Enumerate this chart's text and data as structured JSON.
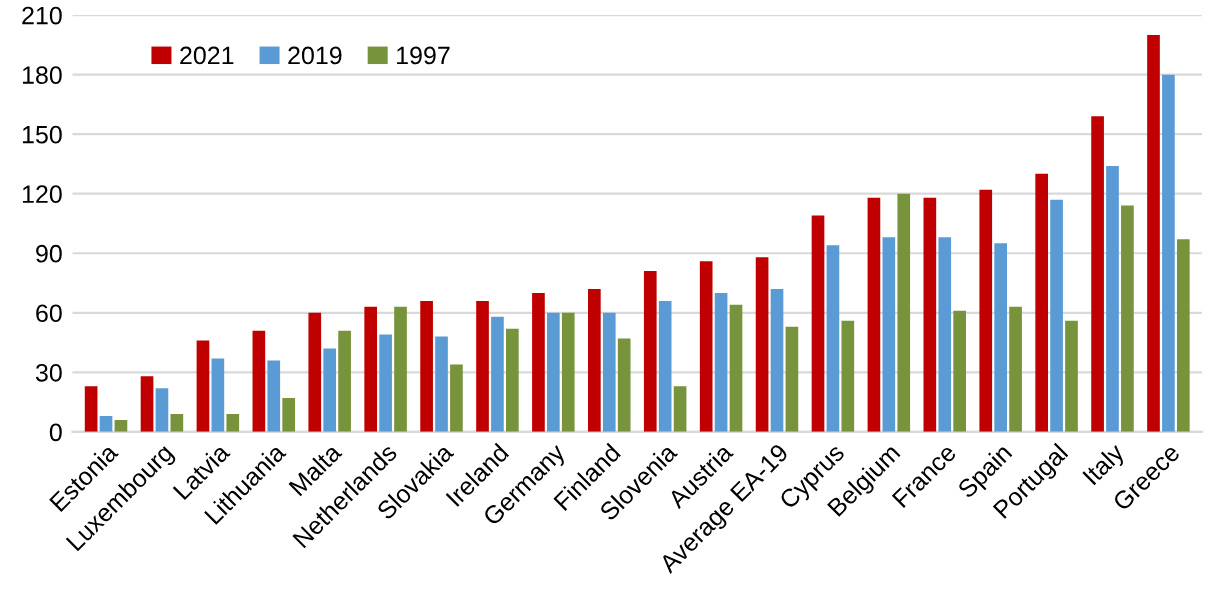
{
  "chart_data": {
    "type": "bar",
    "categories": [
      "Estonia",
      "Luxembourg",
      "Latvia",
      "Lithuania",
      "Malta",
      "Netherlands",
      "Slovakia",
      "Ireland",
      "Germany",
      "Finland",
      "Slovenia",
      "Austria",
      "Average EA-19",
      "Cyprus",
      "Belgium",
      "France",
      "Spain",
      "Portugal",
      "Italy",
      "Greece"
    ],
    "series": [
      {
        "name": "2021",
        "color": "#c00000",
        "values": [
          23,
          28,
          46,
          51,
          60,
          63,
          66,
          66,
          70,
          72,
          81,
          86,
          88,
          109,
          118,
          118,
          122,
          130,
          159,
          200
        ]
      },
      {
        "name": "2019",
        "color": "#5b9bd5",
        "values": [
          8,
          22,
          37,
          36,
          42,
          49,
          48,
          58,
          60,
          60,
          66,
          70,
          72,
          94,
          98,
          98,
          95,
          117,
          134,
          180
        ]
      },
      {
        "name": "1997",
        "color": "#77933c",
        "values": [
          6,
          9,
          9,
          17,
          51,
          63,
          34,
          52,
          60,
          47,
          23,
          64,
          53,
          56,
          120,
          61,
          63,
          56,
          114,
          97
        ]
      }
    ],
    "ylim": [
      0,
      210
    ],
    "yticks": [
      0,
      30,
      60,
      90,
      120,
      150,
      180,
      210
    ],
    "grid": "y",
    "legend": "top left"
  }
}
